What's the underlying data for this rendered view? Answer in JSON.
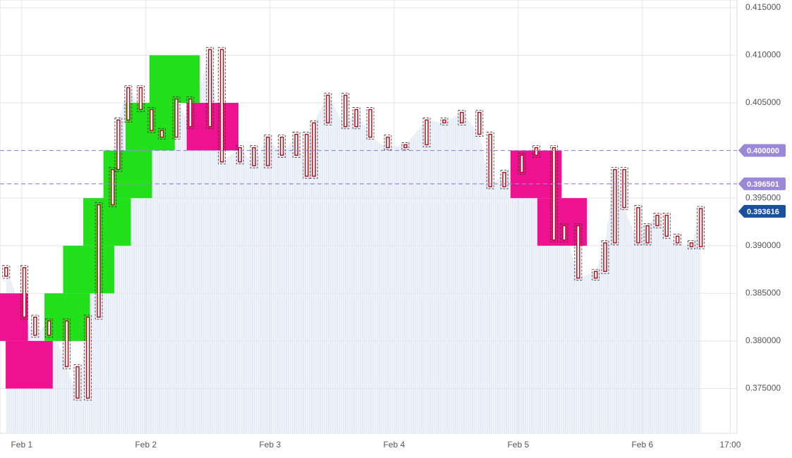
{
  "chart_data": {
    "type": "candlestick",
    "x": [
      -3,
      0.5,
      2.6,
      5.3,
      8.7,
      10.8,
      12.8,
      14.9,
      17.6,
      18.7,
      20.6,
      23,
      25.1,
      27.1,
      29.9,
      32.6,
      36.4,
      38.7,
      42.2,
      44.9,
      47.6,
      50.3,
      53.1,
      55.1,
      56.5,
      59.2,
      62.6,
      64.7,
      67.4,
      70.8,
      74.2,
      78.3,
      81.7,
      85.1,
      88.5,
      90.6,
      93.3,
      96.7,
      99.5,
      102.9,
      104.9,
      107.6,
      111,
      112.8,
      114.7,
      116.5,
      119.2,
      121,
      122.9,
      124.7,
      126.8,
      129.5,
      131.3
    ],
    "open": [
      0.3868,
      0.3877,
      0.3825,
      0.3806,
      0.3821,
      0.3773,
      0.374,
      0.3825,
      0.3943,
      0.398,
      0.4032,
      0.4066,
      0.4043,
      0.4021,
      0.4014,
      0.4054,
      0.4025,
      0.4106,
      0.3988,
      0.4003,
      0.3984,
      0.4014,
      0.3995,
      0.4017,
      0.3973,
      0.4029,
      0.4058,
      0.4025,
      0.4043,
      0.4014,
      0.4003,
      0.4006,
      0.4032,
      0.4029,
      0.404,
      0.4017,
      0.3962,
      0.3977,
      0.3995,
      0.4003,
      0.3906,
      0.3921,
      0.3866,
      0.3873,
      0.3903,
      0.398,
      0.394,
      0.3903,
      0.3921,
      0.3932,
      0.391,
      0.3903,
      0.3899
    ],
    "close": [
      0.3877,
      0.3825,
      0.3806,
      0.3821,
      0.3773,
      0.374,
      0.3825,
      0.3943,
      0.398,
      0.4032,
      0.4066,
      0.4043,
      0.4021,
      0.4014,
      0.4054,
      0.4025,
      0.4106,
      0.3988,
      0.4003,
      0.3984,
      0.4014,
      0.3995,
      0.4017,
      0.3973,
      0.4029,
      0.4058,
      0.4025,
      0.4043,
      0.4014,
      0.4003,
      0.4006,
      0.4032,
      0.4029,
      0.404,
      0.4017,
      0.3962,
      0.3977,
      0.3995,
      0.4003,
      0.3906,
      0.3921,
      0.3866,
      0.3873,
      0.3903,
      0.398,
      0.394,
      0.3903,
      0.3921,
      0.3932,
      0.391,
      0.3903,
      0.3899,
      0.3939
    ],
    "color": "#b3121f",
    "outline_color": "#333333",
    "area_color": "#dfe8f7",
    "bricks": {
      "x0": [
        -4.2,
        -3.1,
        4.4,
        8.0,
        11.9,
        15.8,
        20.1,
        24.7,
        31.9,
        94.5,
        99.7
      ],
      "x1": [
        1.2,
        6.0,
        13.2,
        17.9,
        21.1,
        25.2,
        29.6,
        34.4,
        41.9,
        104.4,
        109.3
      ],
      "low": [
        0.38,
        0.375,
        0.38,
        0.385,
        0.39,
        0.395,
        0.4,
        0.405,
        0.4,
        0.395,
        0.39
      ],
      "high": [
        0.385,
        0.38,
        0.385,
        0.39,
        0.395,
        0.4,
        0.405,
        0.41,
        0.405,
        0.4,
        0.395
      ],
      "colors": [
        "#ee1190",
        "#ee1190",
        "#22e01a",
        "#22e01a",
        "#22e01a",
        "#22e01a",
        "#22e01a",
        "#22e01a",
        "#ee1190",
        "#ee1190",
        "#ee1190"
      ]
    },
    "price_labels": [
      {
        "value": 0.4,
        "label": "0.400000",
        "color": "#9c88d8",
        "line": true
      },
      {
        "value": 0.396501,
        "label": "0.396501",
        "color": "#9c88d8",
        "line": true
      },
      {
        "value": 0.393616,
        "label": "0.393616",
        "color": "#1a4f9c",
        "line": false
      }
    ],
    "xlim": [
      -4.2,
      138.3
    ],
    "xticks": [
      {
        "value": 0,
        "label": "Feb 1"
      },
      {
        "value": 24,
        "label": "Feb 2"
      },
      {
        "value": 48,
        "label": "Feb 3"
      },
      {
        "value": 72,
        "label": "Feb 4"
      },
      {
        "value": 96,
        "label": "Feb 5"
      },
      {
        "value": 120,
        "label": "Feb 6"
      },
      {
        "value": 137,
        "label": "17:00"
      }
    ],
    "ylim": [
      0.3703,
      0.4158
    ],
    "yticks": [
      {
        "value": 0.375,
        "label": "0.375000"
      },
      {
        "value": 0.38,
        "label": "0.380000"
      },
      {
        "value": 0.385,
        "label": "0.385000"
      },
      {
        "value": 0.39,
        "label": "0.390000"
      },
      {
        "value": 0.395,
        "label": "0.395000"
      },
      {
        "value": 0.405,
        "label": "0.405000"
      },
      {
        "value": 0.41,
        "label": "0.410000"
      },
      {
        "value": 0.415,
        "label": "0.415000"
      }
    ],
    "grid": true
  }
}
